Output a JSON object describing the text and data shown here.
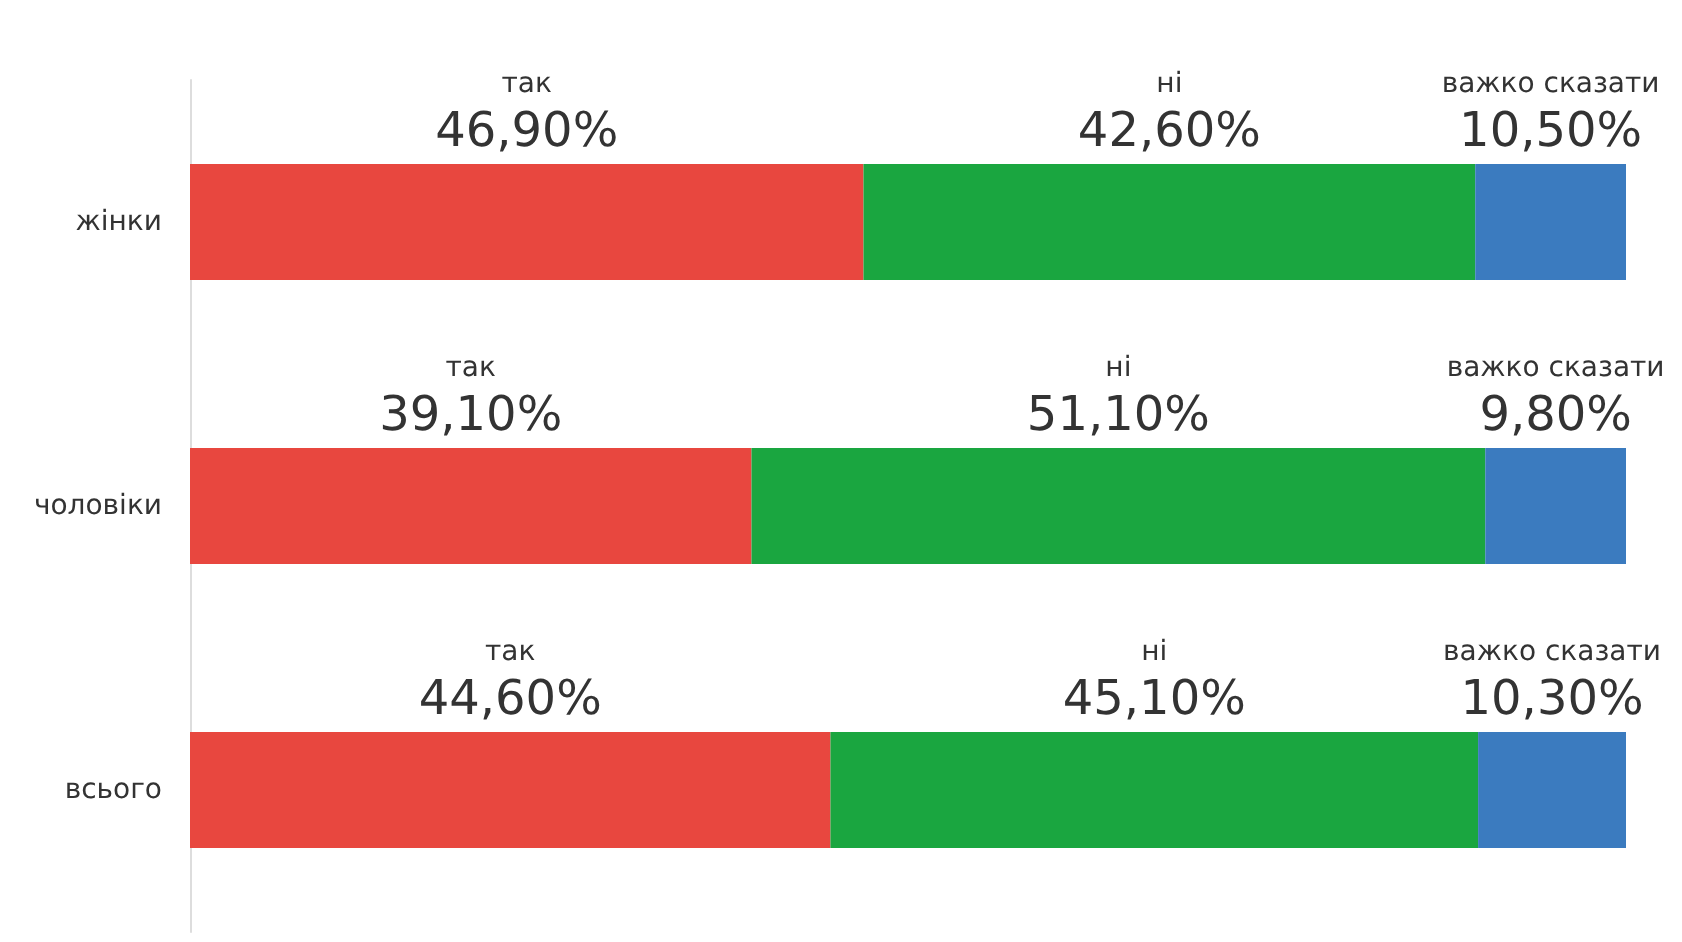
{
  "chart_data": {
    "type": "bar",
    "orientation": "horizontal",
    "stacked": true,
    "legend": false,
    "categories": [
      "жінки",
      "чоловіки",
      "всього"
    ],
    "series": [
      {
        "name": "так",
        "color": "#e8473f",
        "values": [
          46.9,
          39.1,
          44.6
        ],
        "value_labels": [
          "46,90%",
          "39,10%",
          "44,60%"
        ]
      },
      {
        "name": "ні",
        "color": "#1aa640",
        "values": [
          42.6,
          51.1,
          45.1
        ],
        "value_labels": [
          "42,60%",
          "51,10%",
          "45,10%"
        ]
      },
      {
        "name": "важко сказати",
        "color": "#3b7bbf",
        "values": [
          10.5,
          9.8,
          10.3
        ],
        "value_labels": [
          "10,50%",
          "9,80%",
          "10,30%"
        ]
      }
    ]
  }
}
